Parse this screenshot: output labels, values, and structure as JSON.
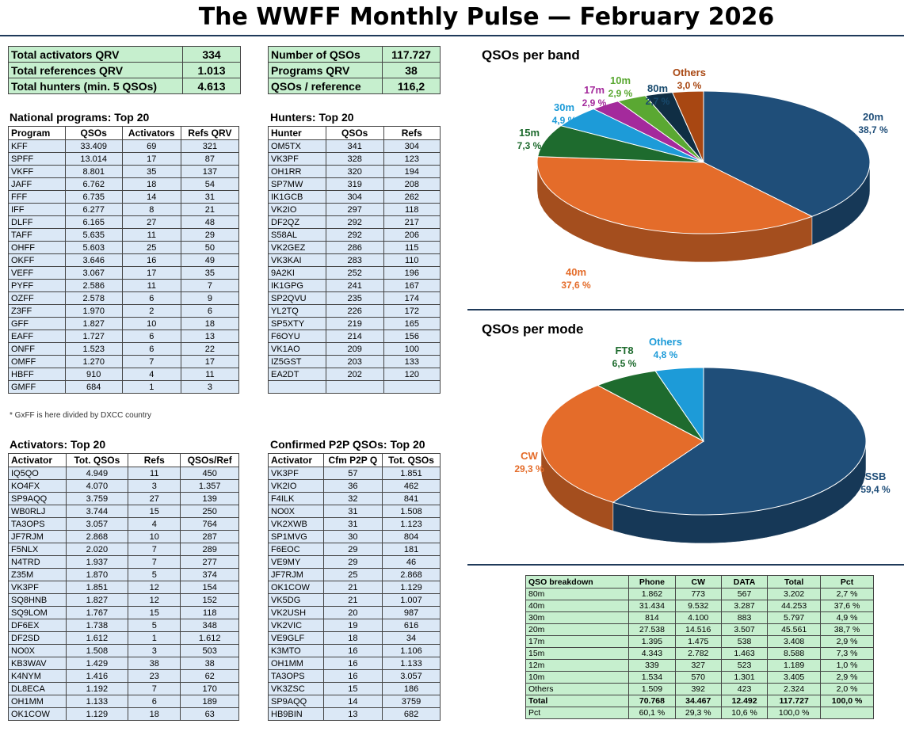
{
  "title": "The WWFF Monthly Pulse — February 2026",
  "summary_left": [
    {
      "label": "Total activators QRV",
      "value": "334"
    },
    {
      "label": "Total references QRV",
      "value": "1.013"
    },
    {
      "label": "Total hunters (min. 5 QSOs)",
      "value": "4.613"
    }
  ],
  "summary_right": [
    {
      "label": "Number of QSOs",
      "value": "117.727"
    },
    {
      "label": "Programs QRV",
      "value": "38"
    },
    {
      "label": "QSOs / reference",
      "value": "116,2"
    }
  ],
  "national": {
    "title": "National programs: Top 20",
    "headers": [
      "Program",
      "QSOs",
      "Activators",
      "Refs QRV"
    ],
    "rows": [
      [
        "KFF",
        "33.409",
        "69",
        "321"
      ],
      [
        "SPFF",
        "13.014",
        "17",
        "87"
      ],
      [
        "VKFF",
        "8.801",
        "35",
        "137"
      ],
      [
        "JAFF",
        "6.762",
        "18",
        "54"
      ],
      [
        "FFF",
        "6.735",
        "14",
        "31"
      ],
      [
        "IFF",
        "6.277",
        "8",
        "21"
      ],
      [
        "DLFF",
        "6.165",
        "27",
        "48"
      ],
      [
        "TAFF",
        "5.635",
        "11",
        "29"
      ],
      [
        "OHFF",
        "5.603",
        "25",
        "50"
      ],
      [
        "OKFF",
        "3.646",
        "16",
        "49"
      ],
      [
        "VEFF",
        "3.067",
        "17",
        "35"
      ],
      [
        "PYFF",
        "2.586",
        "11",
        "7"
      ],
      [
        "OZFF",
        "2.578",
        "6",
        "9"
      ],
      [
        "Z3FF",
        "1.970",
        "2",
        "6"
      ],
      [
        "GFF",
        "1.827",
        "10",
        "18"
      ],
      [
        "EAFF",
        "1.727",
        "6",
        "13"
      ],
      [
        "ONFF",
        "1.523",
        "6",
        "22"
      ],
      [
        "OMFF",
        "1.270",
        "7",
        "17"
      ],
      [
        "HBFF",
        "910",
        "4",
        "11"
      ],
      [
        "GMFF",
        "684",
        "1",
        "3"
      ]
    ],
    "note": "* GxFF is here divided by DXCC country"
  },
  "hunters": {
    "title": "Hunters: Top 20",
    "headers": [
      "Hunter",
      "QSOs",
      "Refs"
    ],
    "rows": [
      [
        "OM5TX",
        "341",
        "304"
      ],
      [
        "VK3PF",
        "328",
        "123"
      ],
      [
        "OH1RR",
        "320",
        "194"
      ],
      [
        "SP7MW",
        "319",
        "208"
      ],
      [
        "IK1GCB",
        "304",
        "262"
      ],
      [
        "VK2IO",
        "297",
        "118"
      ],
      [
        "DF2QZ",
        "292",
        "217"
      ],
      [
        "S58AL",
        "292",
        "206"
      ],
      [
        "VK2GEZ",
        "286",
        "115"
      ],
      [
        "VK3KAI",
        "283",
        "110"
      ],
      [
        "9A2KI",
        "252",
        "196"
      ],
      [
        "IK1GPG",
        "241",
        "167"
      ],
      [
        "SP2QVU",
        "235",
        "174"
      ],
      [
        "YL2TQ",
        "226",
        "172"
      ],
      [
        "SP5XTY",
        "219",
        "165"
      ],
      [
        "F6OYU",
        "214",
        "156"
      ],
      [
        "VK1AO",
        "209",
        "100"
      ],
      [
        "IZ5GST",
        "203",
        "133"
      ],
      [
        "EA2DT",
        "202",
        "120"
      ],
      [
        "",
        "",
        ""
      ]
    ]
  },
  "activators": {
    "title": "Activators: Top 20",
    "headers": [
      "Activator",
      "Tot. QSOs",
      "Refs",
      "QSOs/Ref"
    ],
    "rows": [
      [
        "IQ5QO",
        "4.949",
        "11",
        "450"
      ],
      [
        "KO4FX",
        "4.070",
        "3",
        "1.357"
      ],
      [
        "SP9AQQ",
        "3.759",
        "27",
        "139"
      ],
      [
        "WB0RLJ",
        "3.744",
        "15",
        "250"
      ],
      [
        "TA3OPS",
        "3.057",
        "4",
        "764"
      ],
      [
        "JF7RJM",
        "2.868",
        "10",
        "287"
      ],
      [
        "F5NLX",
        "2.020",
        "7",
        "289"
      ],
      [
        "N4TRD",
        "1.937",
        "7",
        "277"
      ],
      [
        "Z35M",
        "1.870",
        "5",
        "374"
      ],
      [
        "VK3PF",
        "1.851",
        "12",
        "154"
      ],
      [
        "SQ8HNB",
        "1.827",
        "12",
        "152"
      ],
      [
        "SQ9LOM",
        "1.767",
        "15",
        "118"
      ],
      [
        "DF6EX",
        "1.738",
        "5",
        "348"
      ],
      [
        "DF2SD",
        "1.612",
        "1",
        "1.612"
      ],
      [
        "NO0X",
        "1.508",
        "3",
        "503"
      ],
      [
        "KB3WAV",
        "1.429",
        "38",
        "38"
      ],
      [
        "K4NYM",
        "1.416",
        "23",
        "62"
      ],
      [
        "DL8ECA",
        "1.192",
        "7",
        "170"
      ],
      [
        "OH1MM",
        "1.133",
        "6",
        "189"
      ],
      [
        "OK1COW",
        "1.129",
        "18",
        "63"
      ]
    ]
  },
  "p2p": {
    "title": "Confirmed P2P QSOs: Top 20",
    "headers": [
      "Activator",
      "Cfm P2P Q",
      "Tot. QSOs"
    ],
    "rows": [
      [
        "VK3PF",
        "57",
        "1.851"
      ],
      [
        "VK2IO",
        "36",
        "462"
      ],
      [
        "F4ILK",
        "32",
        "841"
      ],
      [
        "NO0X",
        "31",
        "1.508"
      ],
      [
        "VK2XWB",
        "31",
        "1.123"
      ],
      [
        "SP1MVG",
        "30",
        "804"
      ],
      [
        "F6EOC",
        "29",
        "181"
      ],
      [
        "VE9MY",
        "29",
        "46"
      ],
      [
        "JF7RJM",
        "25",
        "2.868"
      ],
      [
        "OK1COW",
        "21",
        "1.129"
      ],
      [
        "VK5DG",
        "21",
        "1.007"
      ],
      [
        "VK2USH",
        "20",
        "987"
      ],
      [
        "VK2VIC",
        "19",
        "616"
      ],
      [
        "VE9GLF",
        "18",
        "34"
      ],
      [
        "K3MTO",
        "16",
        "1.106"
      ],
      [
        "OH1MM",
        "16",
        "1.133"
      ],
      [
        "TA3OPS",
        "16",
        "3.057"
      ],
      [
        "VK3ZSC",
        "15",
        "186"
      ],
      [
        "SP9AQQ",
        "14",
        "3759"
      ],
      [
        "HB9BIN",
        "13",
        "682"
      ]
    ]
  },
  "breakdown": {
    "headers": [
      "QSO breakdown",
      "Phone",
      "CW",
      "DATA",
      "Total",
      "Pct"
    ],
    "rows": [
      [
        "80m",
        "1.862",
        "773",
        "567",
        "3.202",
        "2,7 %"
      ],
      [
        "40m",
        "31.434",
        "9.532",
        "3.287",
        "44.253",
        "37,6 %"
      ],
      [
        "30m",
        "814",
        "4.100",
        "883",
        "5.797",
        "4,9 %"
      ],
      [
        "20m",
        "27.538",
        "14.516",
        "3.507",
        "45.561",
        "38,7 %"
      ],
      [
        "17m",
        "1.395",
        "1.475",
        "538",
        "3.408",
        "2,9 %"
      ],
      [
        "15m",
        "4.343",
        "2.782",
        "1.463",
        "8.588",
        "7,3 %"
      ],
      [
        "12m",
        "339",
        "327",
        "523",
        "1.189",
        "1,0 %"
      ],
      [
        "10m",
        "1.534",
        "570",
        "1.301",
        "3.405",
        "2,9 %"
      ],
      [
        "Others",
        "1.509",
        "392",
        "423",
        "2.324",
        "2,0 %"
      ]
    ],
    "total": [
      "Total",
      "70.768",
      "34.467",
      "12.492",
      "117.727",
      "100,0 %"
    ],
    "pct": [
      "Pct",
      "60,1 %",
      "29,3 %",
      "10,6 %",
      "100,0 %",
      ""
    ]
  },
  "chart_data": [
    {
      "type": "pie",
      "title": "QSOs per band",
      "slices": [
        {
          "label": "20m",
          "value": 38.7,
          "pct_label": "38,7 %",
          "color": "#1f4e79"
        },
        {
          "label": "40m",
          "value": 37.6,
          "pct_label": "37,6 %",
          "color": "#e46c2a"
        },
        {
          "label": "15m",
          "value": 7.3,
          "pct_label": "7,3 %",
          "color": "#1e6b2e"
        },
        {
          "label": "30m",
          "value": 4.9,
          "pct_label": "4,9 %",
          "color": "#1d9bd8"
        },
        {
          "label": "17m",
          "value": 2.9,
          "pct_label": "2,9 %",
          "color": "#a42a9c"
        },
        {
          "label": "10m",
          "value": 2.9,
          "pct_label": "2,9 %",
          "color": "#5aa832"
        },
        {
          "label": "80m",
          "value": 2.7,
          "pct_label": "2,7 %",
          "color": "#0f2e44"
        },
        {
          "label": "Others",
          "value": 3.0,
          "pct_label": "3,0 %",
          "color": "#a84712"
        }
      ]
    },
    {
      "type": "pie",
      "title": "QSOs per mode",
      "slices": [
        {
          "label": "SSB",
          "value": 59.4,
          "pct_label": "59,4 %",
          "color": "#1f4e79"
        },
        {
          "label": "CW",
          "value": 29.3,
          "pct_label": "29,3 %",
          "color": "#e46c2a"
        },
        {
          "label": "FT8",
          "value": 6.5,
          "pct_label": "6,5 %",
          "color": "#1e6b2e"
        },
        {
          "label": "Others",
          "value": 4.8,
          "pct_label": "4,8 %",
          "color": "#1d9bd8"
        }
      ]
    }
  ]
}
